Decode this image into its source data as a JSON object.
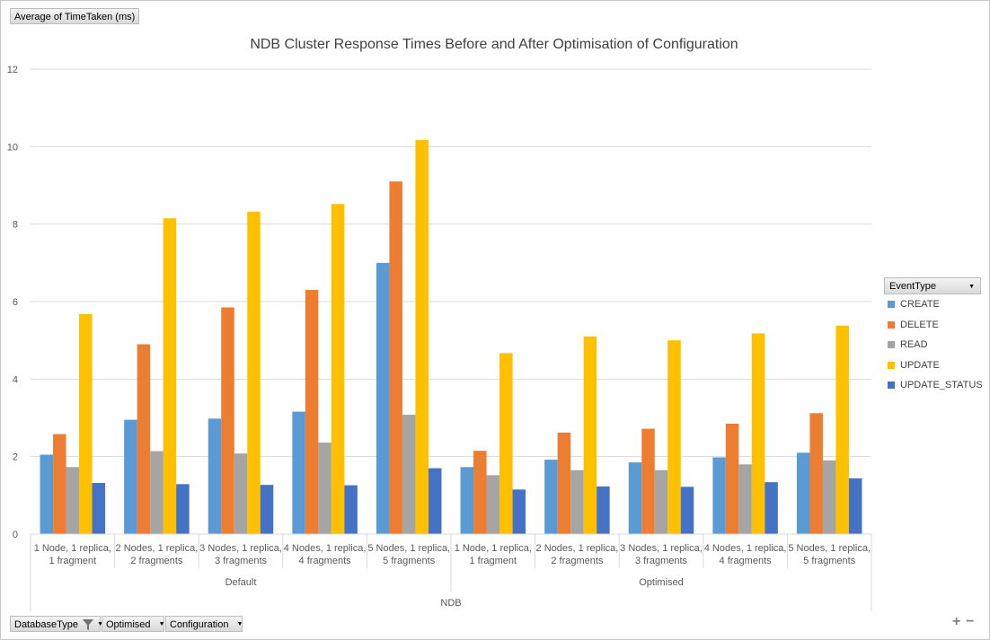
{
  "value_field_label": "Average of TimeTaken (ms)",
  "bottom_fields": [
    {
      "label": "DatabaseType",
      "icon": "filter-icon"
    },
    {
      "label": "Optimised",
      "icon": "dropdown-arrow-icon"
    },
    {
      "label": "Configuration",
      "icon": "dropdown-arrow-icon"
    }
  ],
  "legend_header": "EventType",
  "zoom_in_label": "+",
  "zoom_out_label": "−",
  "chart_data": {
    "type": "bar",
    "title": "NDB Cluster Response Times Before and After Optimisation of Configuration",
    "xlabel": "",
    "ylabel": "",
    "ylim": [
      0,
      12
    ],
    "yticks": [
      0,
      2,
      4,
      6,
      8,
      10,
      12
    ],
    "grid": true,
    "legend_position": "right",
    "categories": [
      [
        "1 Node, 1 replica,",
        "1 fragment"
      ],
      [
        "2 Nodes, 1 replica,",
        "2 fragments"
      ],
      [
        "3 Nodes, 1 replica,",
        "3 fragments"
      ],
      [
        "4 Nodes, 1 replica,",
        "4 fragments"
      ],
      [
        "5 Nodes, 1 replica,",
        "5 fragments"
      ],
      [
        "1 Node, 1 replica,",
        "1 fragment"
      ],
      [
        "2 Nodes, 1 replica,",
        "2 fragments"
      ],
      [
        "3 Nodes, 1 replica,",
        "3 fragments"
      ],
      [
        "4 Nodes, 1 replica,",
        "4 fragments"
      ],
      [
        "5 Nodes, 1 replica,",
        "5 fragments"
      ]
    ],
    "groups": [
      {
        "label": "Default",
        "span": 5
      },
      {
        "label": "Optimised",
        "span": 5
      }
    ],
    "top_group": "NDB",
    "series": [
      {
        "name": "CREATE",
        "color": "#5b9bd5",
        "values": [
          2.05,
          2.95,
          2.98,
          3.16,
          7.0,
          1.73,
          1.92,
          1.85,
          1.98,
          2.1
        ]
      },
      {
        "name": "DELETE",
        "color": "#ed7d31",
        "values": [
          2.58,
          4.9,
          5.85,
          6.3,
          9.1,
          2.15,
          2.62,
          2.72,
          2.85,
          3.12
        ]
      },
      {
        "name": "READ",
        "color": "#a5a5a5",
        "values": [
          1.73,
          2.14,
          2.08,
          2.36,
          3.08,
          1.52,
          1.65,
          1.65,
          1.8,
          1.9
        ]
      },
      {
        "name": "UPDATE",
        "color": "#ffc000",
        "values": [
          5.68,
          8.15,
          8.32,
          8.52,
          10.17,
          4.67,
          5.1,
          5.0,
          5.18,
          5.38
        ]
      },
      {
        "name": "UPDATE_STATUS",
        "color": "#4472c4",
        "values": [
          1.32,
          1.29,
          1.27,
          1.26,
          1.7,
          1.15,
          1.23,
          1.22,
          1.34,
          1.44
        ]
      }
    ]
  }
}
